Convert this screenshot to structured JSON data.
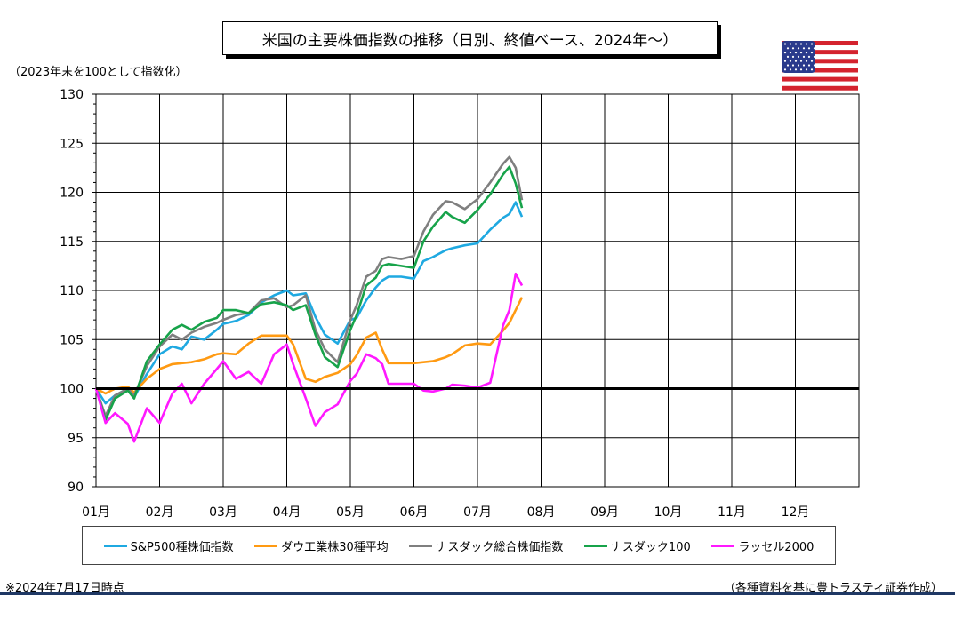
{
  "title": "米国の主要株価指数の推移（日別、終値ベース、2024年～）",
  "subtitle": "（2023年末を100として指数化）",
  "note": "※2024年7月17日時点",
  "source": "（各種資料を基に豊トラスティ証券作成）",
  "flag_icon": "us-flag-icon",
  "chart_data": {
    "type": "line",
    "title": "米国の主要株価指数の推移（日別、終値ベース、2024年～）",
    "ylabel": "（2023年末を100として指数化）",
    "xlabel": "",
    "ylim": [
      90,
      130
    ],
    "yticks": [
      90,
      95,
      100,
      105,
      110,
      115,
      120,
      125,
      130
    ],
    "xlim": [
      0,
      12
    ],
    "xtick_labels": [
      "01月",
      "02月",
      "03月",
      "04月",
      "05月",
      "06月",
      "07月",
      "08月",
      "09月",
      "10月",
      "11月",
      "12月"
    ],
    "grid": true,
    "legend_position": "bottom",
    "reference_line": 100,
    "series": [
      {
        "name": "S&P500種株価指数",
        "color": "#1fa9e1",
        "x": [
          0,
          0.15,
          0.3,
          0.5,
          0.6,
          0.8,
          1.0,
          1.2,
          1.35,
          1.5,
          1.7,
          1.9,
          2.0,
          2.2,
          2.4,
          2.6,
          2.8,
          3.0,
          3.1,
          3.3,
          3.45,
          3.6,
          3.8,
          4.0,
          4.1,
          4.25,
          4.4,
          4.5,
          4.6,
          4.8,
          5.0,
          5.15,
          5.3,
          5.5,
          5.6,
          5.8,
          6.0,
          6.2,
          6.4,
          6.5,
          6.6,
          6.7
        ],
        "y": [
          100,
          98.5,
          99.3,
          100.0,
          99.1,
          101.5,
          103.5,
          104.3,
          104.0,
          105.3,
          105.0,
          106.0,
          106.6,
          106.9,
          107.5,
          108.8,
          109.5,
          110.0,
          109.5,
          109.7,
          107.3,
          105.5,
          104.6,
          107.0,
          107.2,
          109.0,
          110.3,
          111.0,
          111.4,
          111.4,
          111.2,
          113.0,
          113.4,
          114.1,
          114.3,
          114.6,
          114.8,
          116.2,
          117.4,
          117.8,
          119.0,
          117.5
        ]
      },
      {
        "name": "ダウ工業株30種平均",
        "color": "#ff9a12",
        "x": [
          0,
          0.15,
          0.3,
          0.5,
          0.6,
          0.8,
          1.0,
          1.2,
          1.35,
          1.5,
          1.7,
          1.9,
          2.0,
          2.2,
          2.4,
          2.6,
          2.8,
          3.0,
          3.1,
          3.3,
          3.45,
          3.6,
          3.8,
          4.0,
          4.1,
          4.25,
          4.4,
          4.5,
          4.6,
          4.8,
          5.0,
          5.15,
          5.3,
          5.5,
          5.6,
          5.8,
          6.0,
          6.2,
          6.4,
          6.5,
          6.6,
          6.7
        ],
        "y": [
          100,
          99.5,
          100.0,
          100.2,
          99.6,
          101.0,
          102.0,
          102.5,
          102.6,
          102.7,
          103.0,
          103.5,
          103.6,
          103.5,
          104.6,
          105.4,
          105.4,
          105.4,
          104.5,
          101.0,
          100.7,
          101.2,
          101.6,
          102.5,
          103.4,
          105.2,
          105.7,
          104.0,
          102.6,
          102.6,
          102.6,
          102.7,
          102.8,
          103.2,
          103.5,
          104.4,
          104.6,
          104.5,
          105.9,
          106.7,
          108.0,
          109.3
        ]
      },
      {
        "name": "ナスダック総合株価指数",
        "color": "#7f7f7f",
        "x": [
          0,
          0.15,
          0.3,
          0.5,
          0.6,
          0.8,
          1.0,
          1.2,
          1.35,
          1.5,
          1.7,
          1.9,
          2.0,
          2.2,
          2.4,
          2.6,
          2.8,
          3.0,
          3.1,
          3.3,
          3.45,
          3.6,
          3.8,
          4.0,
          4.1,
          4.25,
          4.4,
          4.5,
          4.6,
          4.8,
          5.0,
          5.15,
          5.3,
          5.5,
          5.6,
          5.8,
          6.0,
          6.2,
          6.4,
          6.5,
          6.6,
          6.7
        ],
        "y": [
          100,
          97.2,
          99.3,
          100.0,
          99.3,
          102.3,
          104.3,
          105.5,
          105.0,
          105.7,
          106.3,
          106.7,
          107.0,
          107.5,
          107.7,
          109.0,
          109.2,
          108.3,
          108.5,
          109.5,
          106.0,
          104.0,
          102.7,
          107.0,
          108.5,
          111.4,
          112.0,
          113.2,
          113.4,
          113.2,
          113.5,
          116.0,
          117.7,
          119.1,
          119.0,
          118.3,
          119.3,
          121.0,
          122.9,
          123.6,
          122.5,
          119.2
        ]
      },
      {
        "name": "ナスダック100",
        "color": "#17a34a",
        "x": [
          0,
          0.15,
          0.3,
          0.5,
          0.6,
          0.8,
          1.0,
          1.2,
          1.35,
          1.5,
          1.7,
          1.9,
          2.0,
          2.2,
          2.4,
          2.6,
          2.8,
          3.0,
          3.1,
          3.3,
          3.45,
          3.6,
          3.8,
          4.0,
          4.1,
          4.25,
          4.4,
          4.5,
          4.6,
          4.8,
          5.0,
          5.15,
          5.3,
          5.5,
          5.6,
          5.8,
          6.0,
          6.2,
          6.4,
          6.5,
          6.6,
          6.7
        ],
        "y": [
          100,
          96.8,
          99.0,
          99.8,
          99.0,
          102.8,
          104.5,
          106.0,
          106.5,
          106.0,
          106.8,
          107.2,
          108.0,
          108.0,
          107.7,
          108.6,
          108.8,
          108.5,
          108.0,
          108.5,
          105.5,
          103.2,
          102.2,
          106.0,
          107.5,
          110.5,
          111.3,
          112.5,
          112.7,
          112.5,
          112.3,
          115.0,
          116.5,
          118.0,
          117.5,
          116.9,
          118.2,
          119.8,
          121.8,
          122.6,
          120.9,
          118.4
        ]
      },
      {
        "name": "ラッセル2000",
        "color": "#ff19ff",
        "x": [
          0,
          0.15,
          0.3,
          0.5,
          0.6,
          0.8,
          1.0,
          1.2,
          1.35,
          1.5,
          1.7,
          1.9,
          2.0,
          2.2,
          2.4,
          2.6,
          2.8,
          3.0,
          3.1,
          3.3,
          3.45,
          3.6,
          3.8,
          4.0,
          4.1,
          4.25,
          4.4,
          4.5,
          4.6,
          4.8,
          5.0,
          5.15,
          5.3,
          5.5,
          5.6,
          5.8,
          6.0,
          6.2,
          6.4,
          6.5,
          6.6,
          6.7
        ],
        "y": [
          100,
          96.5,
          97.5,
          96.4,
          94.6,
          98.0,
          96.5,
          99.5,
          100.5,
          98.5,
          100.5,
          102.0,
          102.8,
          101.0,
          101.7,
          100.5,
          103.5,
          104.5,
          102.5,
          99.0,
          96.2,
          97.6,
          98.4,
          100.8,
          101.5,
          103.5,
          103.1,
          102.5,
          100.5,
          100.5,
          100.5,
          99.8,
          99.7,
          100.0,
          100.4,
          100.3,
          100.1,
          100.6,
          106.4,
          108.0,
          111.7,
          110.5
        ]
      }
    ]
  }
}
